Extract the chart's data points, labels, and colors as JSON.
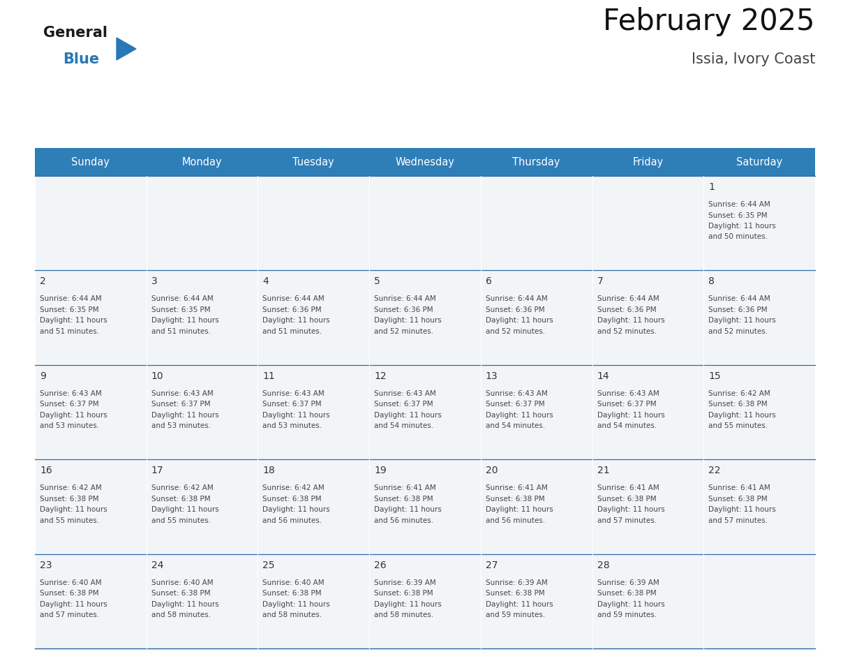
{
  "title": "February 2025",
  "subtitle": "Issia, Ivory Coast",
  "days_of_week": [
    "Sunday",
    "Monday",
    "Tuesday",
    "Wednesday",
    "Thursday",
    "Friday",
    "Saturday"
  ],
  "header_bg_color": "#2E7EB8",
  "header_text_color": "#FFFFFF",
  "cell_bg_color": "#F2F5F8",
  "border_color": "#2E6DA4",
  "day_number_color": "#333333",
  "info_text_color": "#444444",
  "title_color": "#111111",
  "subtitle_color": "#444444",
  "logo_general_color": "#1a1a1a",
  "logo_blue_color": "#2878B5",
  "calendar_data": [
    {
      "day": 1,
      "col": 6,
      "row": 0,
      "sunrise": "6:44 AM",
      "sunset": "6:35 PM",
      "daylight_extra": "50 minutes."
    },
    {
      "day": 2,
      "col": 0,
      "row": 1,
      "sunrise": "6:44 AM",
      "sunset": "6:35 PM",
      "daylight_extra": "51 minutes."
    },
    {
      "day": 3,
      "col": 1,
      "row": 1,
      "sunrise": "6:44 AM",
      "sunset": "6:35 PM",
      "daylight_extra": "51 minutes."
    },
    {
      "day": 4,
      "col": 2,
      "row": 1,
      "sunrise": "6:44 AM",
      "sunset": "6:36 PM",
      "daylight_extra": "51 minutes."
    },
    {
      "day": 5,
      "col": 3,
      "row": 1,
      "sunrise": "6:44 AM",
      "sunset": "6:36 PM",
      "daylight_extra": "52 minutes."
    },
    {
      "day": 6,
      "col": 4,
      "row": 1,
      "sunrise": "6:44 AM",
      "sunset": "6:36 PM",
      "daylight_extra": "52 minutes."
    },
    {
      "day": 7,
      "col": 5,
      "row": 1,
      "sunrise": "6:44 AM",
      "sunset": "6:36 PM",
      "daylight_extra": "52 minutes."
    },
    {
      "day": 8,
      "col": 6,
      "row": 1,
      "sunrise": "6:44 AM",
      "sunset": "6:36 PM",
      "daylight_extra": "52 minutes."
    },
    {
      "day": 9,
      "col": 0,
      "row": 2,
      "sunrise": "6:43 AM",
      "sunset": "6:37 PM",
      "daylight_extra": "53 minutes."
    },
    {
      "day": 10,
      "col": 1,
      "row": 2,
      "sunrise": "6:43 AM",
      "sunset": "6:37 PM",
      "daylight_extra": "53 minutes."
    },
    {
      "day": 11,
      "col": 2,
      "row": 2,
      "sunrise": "6:43 AM",
      "sunset": "6:37 PM",
      "daylight_extra": "53 minutes."
    },
    {
      "day": 12,
      "col": 3,
      "row": 2,
      "sunrise": "6:43 AM",
      "sunset": "6:37 PM",
      "daylight_extra": "54 minutes."
    },
    {
      "day": 13,
      "col": 4,
      "row": 2,
      "sunrise": "6:43 AM",
      "sunset": "6:37 PM",
      "daylight_extra": "54 minutes."
    },
    {
      "day": 14,
      "col": 5,
      "row": 2,
      "sunrise": "6:43 AM",
      "sunset": "6:37 PM",
      "daylight_extra": "54 minutes."
    },
    {
      "day": 15,
      "col": 6,
      "row": 2,
      "sunrise": "6:42 AM",
      "sunset": "6:38 PM",
      "daylight_extra": "55 minutes."
    },
    {
      "day": 16,
      "col": 0,
      "row": 3,
      "sunrise": "6:42 AM",
      "sunset": "6:38 PM",
      "daylight_extra": "55 minutes."
    },
    {
      "day": 17,
      "col": 1,
      "row": 3,
      "sunrise": "6:42 AM",
      "sunset": "6:38 PM",
      "daylight_extra": "55 minutes."
    },
    {
      "day": 18,
      "col": 2,
      "row": 3,
      "sunrise": "6:42 AM",
      "sunset": "6:38 PM",
      "daylight_extra": "56 minutes."
    },
    {
      "day": 19,
      "col": 3,
      "row": 3,
      "sunrise": "6:41 AM",
      "sunset": "6:38 PM",
      "daylight_extra": "56 minutes."
    },
    {
      "day": 20,
      "col": 4,
      "row": 3,
      "sunrise": "6:41 AM",
      "sunset": "6:38 PM",
      "daylight_extra": "56 minutes."
    },
    {
      "day": 21,
      "col": 5,
      "row": 3,
      "sunrise": "6:41 AM",
      "sunset": "6:38 PM",
      "daylight_extra": "57 minutes."
    },
    {
      "day": 22,
      "col": 6,
      "row": 3,
      "sunrise": "6:41 AM",
      "sunset": "6:38 PM",
      "daylight_extra": "57 minutes."
    },
    {
      "day": 23,
      "col": 0,
      "row": 4,
      "sunrise": "6:40 AM",
      "sunset": "6:38 PM",
      "daylight_extra": "57 minutes."
    },
    {
      "day": 24,
      "col": 1,
      "row": 4,
      "sunrise": "6:40 AM",
      "sunset": "6:38 PM",
      "daylight_extra": "58 minutes."
    },
    {
      "day": 25,
      "col": 2,
      "row": 4,
      "sunrise": "6:40 AM",
      "sunset": "6:38 PM",
      "daylight_extra": "58 minutes."
    },
    {
      "day": 26,
      "col": 3,
      "row": 4,
      "sunrise": "6:39 AM",
      "sunset": "6:38 PM",
      "daylight_extra": "58 minutes."
    },
    {
      "day": 27,
      "col": 4,
      "row": 4,
      "sunrise": "6:39 AM",
      "sunset": "6:38 PM",
      "daylight_extra": "59 minutes."
    },
    {
      "day": 28,
      "col": 5,
      "row": 4,
      "sunrise": "6:39 AM",
      "sunset": "6:38 PM",
      "daylight_extra": "59 minutes."
    }
  ]
}
